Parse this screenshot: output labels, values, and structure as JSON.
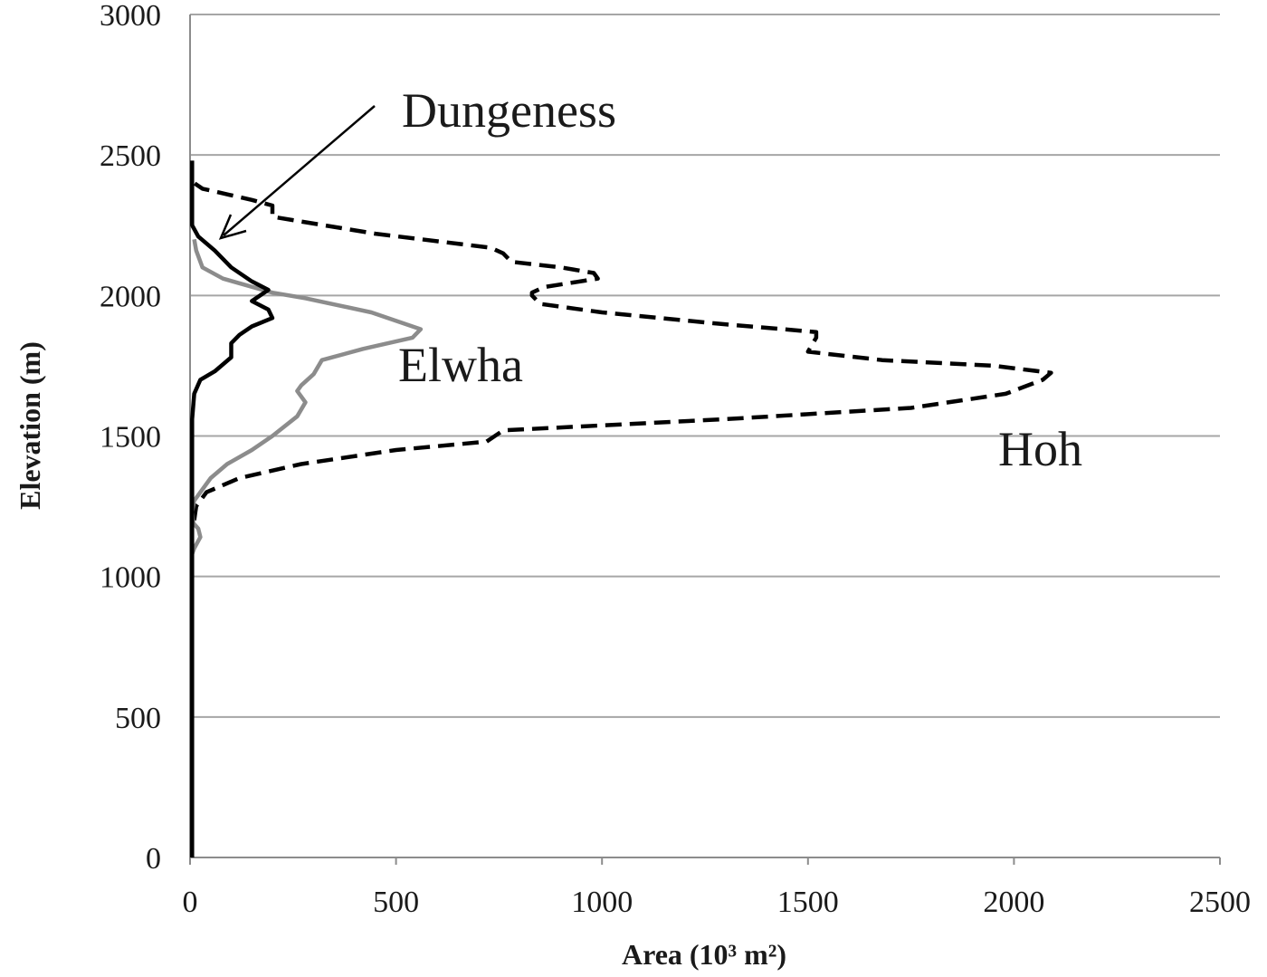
{
  "chart_data": {
    "type": "line",
    "xlabel": "Area (10³ m²)",
    "ylabel": "Elevation (m)",
    "xlim": [
      0,
      2500
    ],
    "ylim": [
      0,
      3000
    ],
    "xticks": [
      0,
      500,
      1000,
      1500,
      2000,
      2500
    ],
    "yticks": [
      0,
      500,
      1000,
      1500,
      2000,
      2500,
      3000
    ],
    "grid": "horizontal",
    "legend": "none",
    "series": [
      {
        "name": "Hoh",
        "color": "#000000",
        "style": "dashed",
        "points": [
          [
            10,
            1200
          ],
          [
            15,
            1250
          ],
          [
            40,
            1300
          ],
          [
            120,
            1350
          ],
          [
            270,
            1400
          ],
          [
            500,
            1450
          ],
          [
            720,
            1480
          ],
          [
            760,
            1520
          ],
          [
            1300,
            1560
          ],
          [
            1750,
            1600
          ],
          [
            1980,
            1650
          ],
          [
            2070,
            1700
          ],
          [
            2090,
            1725
          ],
          [
            1950,
            1750
          ],
          [
            1680,
            1770
          ],
          [
            1500,
            1800
          ],
          [
            1520,
            1850
          ],
          [
            1520,
            1870
          ],
          [
            1280,
            1900
          ],
          [
            1000,
            1940
          ],
          [
            850,
            1970
          ],
          [
            830,
            2000
          ],
          [
            830,
            2010
          ],
          [
            860,
            2030
          ],
          [
            990,
            2060
          ],
          [
            980,
            2080
          ],
          [
            900,
            2100
          ],
          [
            780,
            2120
          ],
          [
            760,
            2150
          ],
          [
            730,
            2170
          ],
          [
            450,
            2220
          ],
          [
            200,
            2280
          ],
          [
            200,
            2320
          ],
          [
            150,
            2340
          ],
          [
            30,
            2380
          ],
          [
            10,
            2400
          ],
          [
            5,
            2420
          ]
        ]
      },
      {
        "name": "Elwha",
        "color": "#8c8c8c",
        "style": "solid",
        "points": [
          [
            5,
            1080
          ],
          [
            10,
            1100
          ],
          [
            25,
            1140
          ],
          [
            20,
            1170
          ],
          [
            8,
            1190
          ],
          [
            5,
            1230
          ],
          [
            10,
            1270
          ],
          [
            50,
            1350
          ],
          [
            90,
            1400
          ],
          [
            150,
            1450
          ],
          [
            200,
            1500
          ],
          [
            260,
            1570
          ],
          [
            280,
            1620
          ],
          [
            260,
            1660
          ],
          [
            270,
            1680
          ],
          [
            300,
            1720
          ],
          [
            320,
            1770
          ],
          [
            420,
            1810
          ],
          [
            540,
            1850
          ],
          [
            560,
            1880
          ],
          [
            440,
            1940
          ],
          [
            280,
            1990
          ],
          [
            200,
            2010
          ],
          [
            80,
            2060
          ],
          [
            30,
            2100
          ],
          [
            15,
            2160
          ],
          [
            10,
            2200
          ]
        ]
      },
      {
        "name": "Dungeness",
        "color": "#000000",
        "style": "solid",
        "points": [
          [
            5,
            0
          ],
          [
            5,
            500
          ],
          [
            5,
            1000
          ],
          [
            5,
            1300
          ],
          [
            5,
            1560
          ],
          [
            10,
            1650
          ],
          [
            25,
            1700
          ],
          [
            60,
            1730
          ],
          [
            100,
            1780
          ],
          [
            100,
            1830
          ],
          [
            120,
            1860
          ],
          [
            150,
            1890
          ],
          [
            200,
            1920
          ],
          [
            190,
            1950
          ],
          [
            150,
            1980
          ],
          [
            190,
            2020
          ],
          [
            150,
            2050
          ],
          [
            100,
            2100
          ],
          [
            60,
            2160
          ],
          [
            20,
            2210
          ],
          [
            5,
            2250
          ],
          [
            5,
            2300
          ],
          [
            5,
            2480
          ]
        ]
      }
    ],
    "annotations": {
      "dungeness": "Dungeness",
      "elwha": "Elwha",
      "hoh": "Hoh"
    }
  }
}
